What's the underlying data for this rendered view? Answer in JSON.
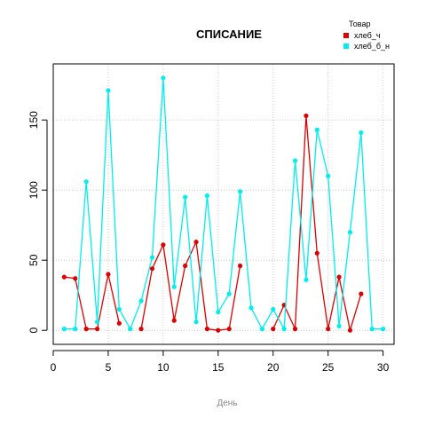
{
  "chart_data": {
    "type": "line",
    "title": "СПИСАНИЕ",
    "xlabel": "День",
    "ylabel": "",
    "xlim": [
      0,
      31
    ],
    "ylim": [
      -10,
      190
    ],
    "xticks": [
      0,
      5,
      10,
      15,
      20,
      25,
      30
    ],
    "yticks": [
      0,
      50,
      100,
      150
    ],
    "grid": true,
    "legend_title": "Товар",
    "legend_position": "top-right",
    "x": [
      1,
      2,
      3,
      4,
      5,
      6,
      7,
      8,
      9,
      10,
      11,
      12,
      13,
      14,
      15,
      16,
      17,
      18,
      19,
      20,
      21,
      22,
      23,
      24,
      25,
      26,
      27,
      28,
      29,
      30
    ],
    "series": [
      {
        "name": "хлеб_ч",
        "color": "#dd0000",
        "values": [
          38,
          37,
          1,
          1,
          40,
          5,
          null,
          1,
          44,
          61,
          7,
          46,
          63,
          1,
          0,
          1,
          46,
          null,
          null,
          1,
          18,
          1,
          153,
          55,
          1,
          38,
          0,
          26,
          null,
          null
        ]
      },
      {
        "name": "хлеб_б_н",
        "color": "#00eeee",
        "values": [
          1,
          1,
          106,
          6,
          171,
          15,
          1,
          21,
          52,
          180,
          31,
          95,
          6,
          96,
          13,
          26,
          99,
          16,
          1,
          15,
          1,
          121,
          36,
          143,
          110,
          3,
          70,
          141,
          1,
          1
        ]
      }
    ]
  }
}
